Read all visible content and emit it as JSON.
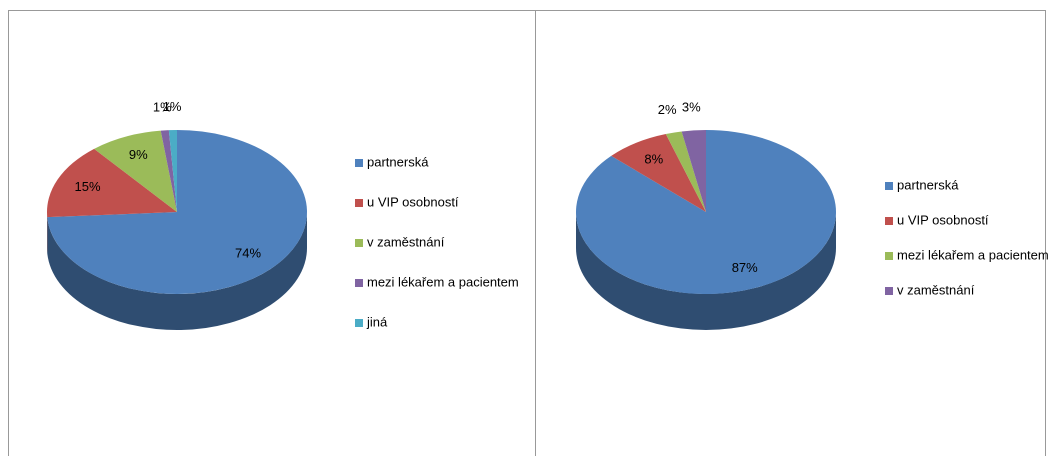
{
  "chart_data": [
    {
      "type": "pie",
      "categories": [
        "partnerská",
        "u VIP osobností",
        "v zaměstnání",
        "mezi lékařem a pacientem",
        "jiná"
      ],
      "values": [
        74,
        15,
        9,
        1,
        1
      ],
      "value_labels": [
        "74%",
        "15%",
        "9%",
        "1%",
        "1%"
      ],
      "colors": [
        "#4f81bd",
        "#c0504d",
        "#9bbb59",
        "#8064a2",
        "#4bacc6"
      ],
      "legend": "right"
    },
    {
      "type": "pie",
      "categories": [
        "partnerská",
        "u VIP osobností",
        "mezi lékařem a pacientem",
        "v zaměstnání"
      ],
      "values": [
        87,
        8,
        2,
        3
      ],
      "value_labels": [
        "87%",
        "8%",
        "2%",
        "3%"
      ],
      "colors": [
        "#4f81bd",
        "#c0504d",
        "#9bbb59",
        "#8064a2"
      ],
      "legend": "right"
    }
  ]
}
